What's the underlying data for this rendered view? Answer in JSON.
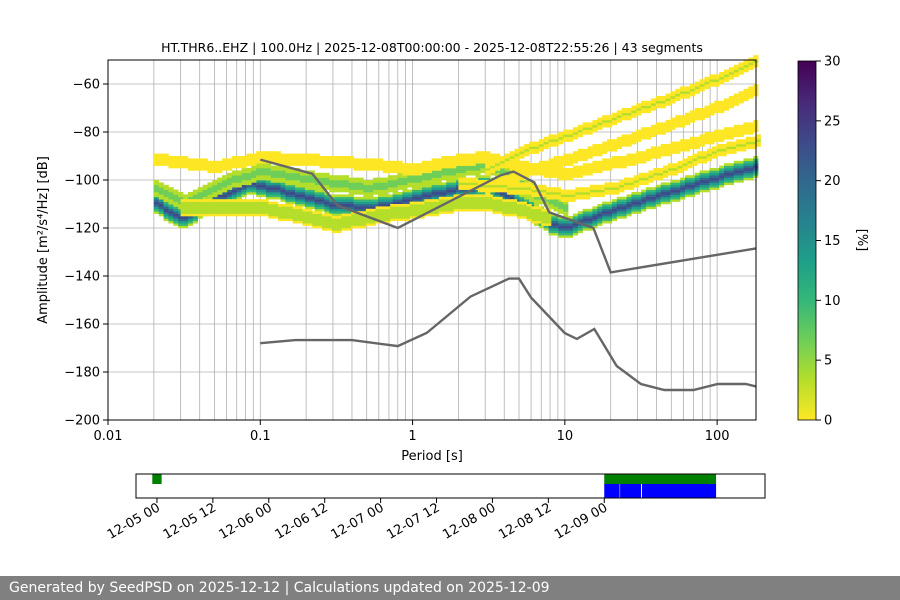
{
  "chart_data": {
    "type": "heatmap",
    "title": "HT.THR6..EHZ | 100.0Hz | 2025-12-08T00:00:00 - 2025-12-08T22:55:26 | 43 segments",
    "xlabel": "Period [s]",
    "ylabel": "Amplitude [m²/s⁴/Hz] [dB]",
    "x_scale": "log",
    "xlim": [
      0.01,
      180
    ],
    "ylim": [
      -200,
      -50
    ],
    "x_ticks": [
      0.01,
      0.1,
      1,
      10,
      100
    ],
    "x_tick_labels": [
      "0.01",
      "0.1",
      "1",
      "10",
      "100"
    ],
    "y_ticks": [
      -200,
      -180,
      -160,
      -140,
      -120,
      -100,
      -80,
      -60
    ],
    "y_tick_labels": [
      "−200",
      "−180",
      "−160",
      "−140",
      "−120",
      "−100",
      "−80",
      "−60"
    ],
    "grid": true,
    "colorbar": {
      "label": "[%]",
      "range": [
        0,
        30
      ],
      "ticks": [
        0,
        5,
        10,
        15,
        20,
        25,
        30
      ],
      "tick_labels": [
        "0",
        "5",
        "10",
        "15",
        "20",
        "25",
        "30"
      ],
      "colors": [
        "#fde725",
        "#b5de2b",
        "#6ece58",
        "#35b779",
        "#1f9e89",
        "#26828e",
        "#31688e",
        "#3e4989",
        "#482878",
        "#440154"
      ]
    },
    "ppsd_bands": [
      {
        "name": "mode",
        "points": [
          [
            0.02,
            -110
          ],
          [
            0.03,
            -117
          ],
          [
            0.05,
            -108
          ],
          [
            0.08,
            -102
          ],
          [
            0.12,
            -104
          ],
          [
            0.2,
            -108
          ],
          [
            0.3,
            -111
          ],
          [
            0.5,
            -112
          ],
          [
            0.8,
            -110
          ],
          [
            1.2,
            -107
          ],
          [
            2,
            -104
          ],
          [
            3,
            -103
          ],
          [
            4,
            -107
          ],
          [
            6,
            -114
          ],
          [
            8,
            -119
          ],
          [
            10,
            -120
          ],
          [
            15,
            -116
          ],
          [
            20,
            -113
          ],
          [
            40,
            -107
          ],
          [
            80,
            -101
          ],
          [
            150,
            -96
          ],
          [
            180,
            -95
          ]
        ],
        "spread": 4,
        "pct": 24
      },
      {
        "name": "upper-spread",
        "points": [
          [
            0.02,
            -104
          ],
          [
            0.03,
            -110
          ],
          [
            0.06,
            -101
          ],
          [
            0.1,
            -97
          ],
          [
            0.2,
            -100
          ],
          [
            0.5,
            -104
          ],
          [
            1,
            -100
          ],
          [
            2,
            -96
          ],
          [
            3,
            -94
          ],
          [
            4,
            -98
          ],
          [
            6,
            -106
          ],
          [
            10,
            -112
          ]
        ],
        "spread": 3,
        "pct": 8
      },
      {
        "name": "lower-spread",
        "points": [
          [
            0.03,
            -112
          ],
          [
            0.06,
            -112
          ],
          [
            0.1,
            -112
          ],
          [
            0.2,
            -116
          ],
          [
            0.3,
            -119
          ],
          [
            0.5,
            -116
          ],
          [
            1,
            -113
          ],
          [
            2,
            -110
          ],
          [
            3,
            -110
          ],
          [
            5,
            -113
          ],
          [
            8,
            -117
          ]
        ],
        "spread": 3,
        "pct": 4
      },
      {
        "name": "outlier-a",
        "points": [
          [
            0.02,
            -92
          ],
          [
            0.05,
            -95
          ],
          [
            0.1,
            -91
          ],
          [
            0.3,
            -93
          ],
          [
            0.5,
            -94
          ],
          [
            1,
            -96
          ],
          [
            2,
            -92
          ],
          [
            3,
            -91
          ],
          [
            5,
            -95
          ],
          [
            10,
            -98
          ],
          [
            30,
            -91
          ],
          [
            100,
            -82
          ],
          [
            180,
            -78
          ]
        ],
        "spread": 2,
        "pct": 1
      },
      {
        "name": "outlier-b",
        "points": [
          [
            3,
            -96
          ],
          [
            5,
            -89
          ],
          [
            10,
            -82
          ],
          [
            20,
            -75
          ],
          [
            50,
            -66
          ],
          [
            100,
            -58
          ],
          [
            180,
            -51
          ]
        ],
        "spread": 2,
        "pct": 2
      },
      {
        "name": "outlier-c",
        "points": [
          [
            3,
            -104
          ],
          [
            6,
            -96
          ],
          [
            10,
            -92
          ],
          [
            20,
            -86
          ],
          [
            50,
            -77
          ],
          [
            100,
            -70
          ],
          [
            180,
            -63
          ]
        ],
        "spread": 2,
        "pct": 1
      },
      {
        "name": "outlier-d",
        "points": [
          [
            2,
            -102
          ],
          [
            5,
            -104
          ],
          [
            10,
            -107
          ],
          [
            20,
            -104
          ],
          [
            50,
            -96
          ],
          [
            100,
            -88
          ],
          [
            180,
            -84
          ]
        ],
        "spread": 2,
        "pct": 2
      }
    ],
    "nhnm": {
      "name": "NHNM",
      "period": [
        0.1,
        0.22,
        0.32,
        0.8,
        3.8,
        4.6,
        6.3,
        7.9,
        15.4,
        20,
        180
      ],
      "db": [
        -91.5,
        -97.4,
        -110.5,
        -120,
        -98,
        -96.5,
        -101,
        -113.5,
        -120,
        -138.5,
        -128.5
      ]
    },
    "nlnm": {
      "name": "NLNM",
      "period": [
        0.1,
        0.17,
        0.4,
        0.8,
        1.24,
        2.4,
        4.3,
        5,
        6,
        10,
        12,
        15.6,
        21.9,
        31.6,
        45,
        70,
        101,
        154,
        180
      ],
      "db": [
        -168,
        -166.7,
        -166.7,
        -169.2,
        -163.7,
        -148.6,
        -141.1,
        -141.1,
        -149,
        -163.8,
        -166.2,
        -162.1,
        -177.5,
        -185,
        -187.5,
        -187.5,
        -185,
        -185,
        -186
      ]
    },
    "timeline": {
      "tick_labels": [
        "12-05 00",
        "12-05 12",
        "12-06 00",
        "12-06 12",
        "12-07 00",
        "12-07 12",
        "12-08 00",
        "12-08 12",
        "12-09 00"
      ],
      "range_hours": [
        -4.5,
        130.5
      ],
      "green_segments": [
        [
          -1,
          1
        ],
        [
          96,
          120
        ]
      ],
      "blue_segments": [
        [
          96,
          99.3
        ],
        [
          99.4,
          103.9
        ],
        [
          104.1,
          120
        ]
      ]
    }
  },
  "footer": {
    "text": "Generated by SeedPSD on 2025-12-12 | Calculations updated on 2025-12-09"
  }
}
